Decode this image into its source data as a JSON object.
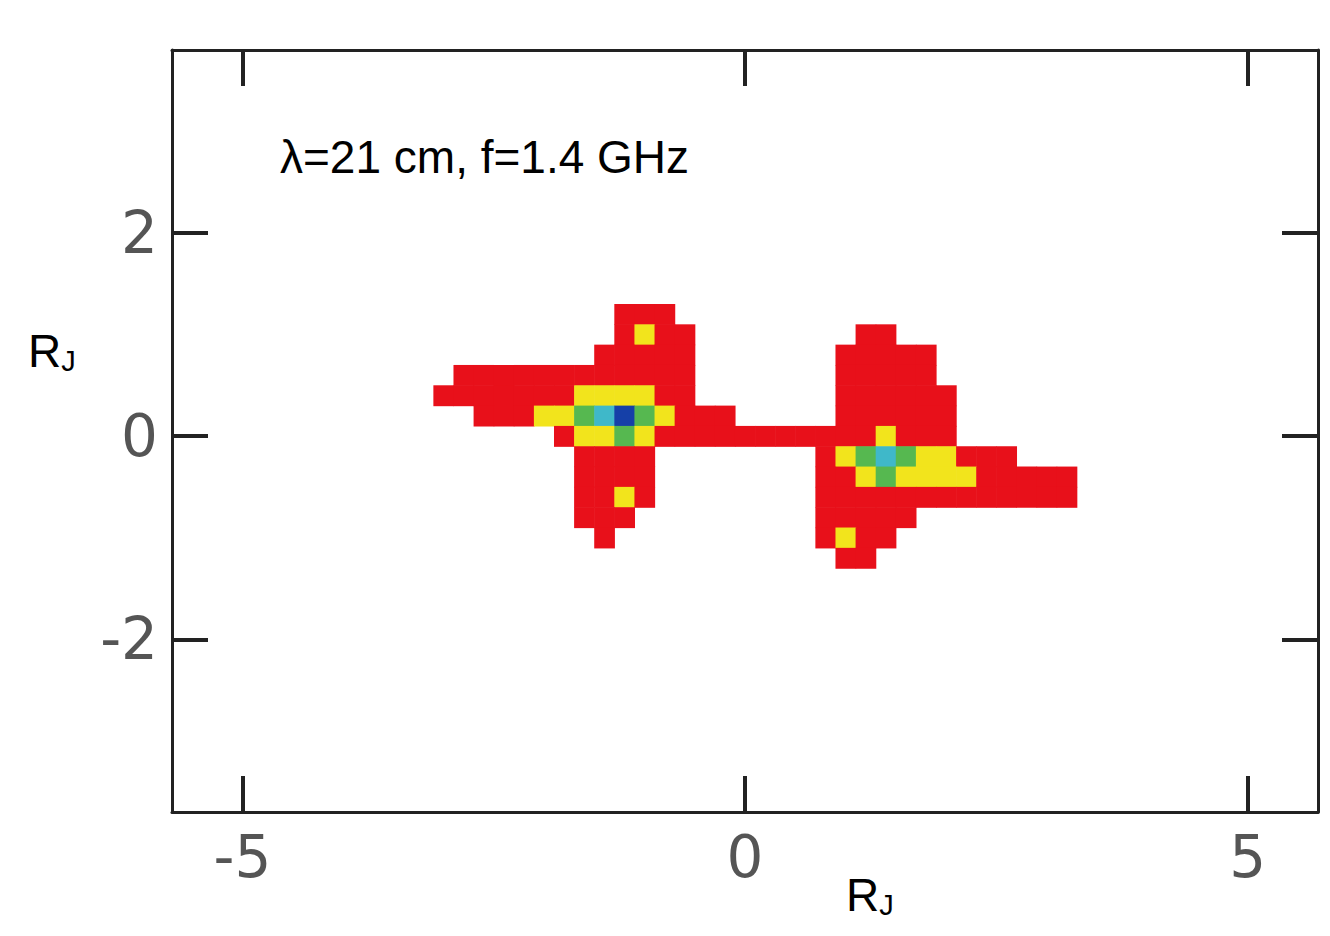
{
  "chart_data": {
    "type": "heatmap",
    "annotation": "λ=21 cm, f=1.4 GHz",
    "x_label": "RJ",
    "y_label": "RJ",
    "xlim": [
      -5.7,
      5.7
    ],
    "ylim": [
      -3.7,
      3.8
    ],
    "xticks": [
      -5,
      0,
      5
    ],
    "yticks": [
      -2,
      0,
      2
    ],
    "grid": false,
    "x": [
      -3.2,
      -3.0,
      -2.8,
      -2.6,
      -2.4,
      -2.2,
      -2.0,
      -1.8,
      -1.6,
      -1.4,
      -1.2,
      -1.0,
      -0.8,
      -0.6,
      -0.4,
      -0.2,
      0,
      0.2,
      0.4,
      0.6,
      0.8,
      1.0,
      1.2,
      1.4,
      1.6,
      1.8,
      2.0,
      2.2,
      2.4,
      2.6,
      2.8,
      3.0,
      3.2,
      3.4
    ],
    "y": [
      1.2,
      1.0,
      0.8,
      0.6,
      0.4,
      0.2,
      0,
      -0.2,
      -0.4,
      -0.6,
      -0.8,
      -1.0,
      -1.2
    ],
    "cells": [
      [
        0,
        0,
        0,
        0,
        0,
        0,
        0,
        0,
        0,
        0,
        1,
        1,
        1,
        0,
        0,
        0,
        0,
        0,
        0,
        0,
        0,
        0,
        0,
        0,
        0,
        0,
        0,
        0,
        0,
        0,
        0,
        0,
        0,
        0
      ],
      [
        0,
        0,
        0,
        0,
        0,
        0,
        0,
        0,
        0,
        0,
        1,
        2,
        1,
        1,
        0,
        0,
        0,
        0,
        0,
        0,
        0,
        0,
        1,
        1,
        0,
        0,
        0,
        0,
        0,
        0,
        0,
        0,
        0,
        0
      ],
      [
        0,
        0,
        0,
        0,
        0,
        0,
        0,
        0,
        0,
        1,
        1,
        1,
        1,
        1,
        0,
        0,
        0,
        0,
        0,
        0,
        0,
        1,
        1,
        1,
        1,
        1,
        0,
        0,
        0,
        0,
        0,
        0,
        0,
        0
      ],
      [
        0,
        0,
        1,
        1,
        1,
        1,
        1,
        1,
        1,
        1,
        1,
        1,
        1,
        1,
        0,
        0,
        0,
        0,
        0,
        0,
        0,
        1,
        1,
        1,
        1,
        1,
        0,
        0,
        0,
        0,
        0,
        0,
        0,
        0
      ],
      [
        0,
        1,
        1,
        1,
        1,
        1,
        1,
        1,
        2,
        2,
        2,
        2,
        1,
        1,
        0,
        0,
        0,
        0,
        0,
        0,
        0,
        1,
        1,
        1,
        1,
        1,
        1,
        0,
        0,
        0,
        0,
        0,
        0,
        0
      ],
      [
        0,
        0,
        0,
        1,
        1,
        1,
        2,
        2,
        3,
        4,
        5,
        3,
        2,
        1,
        1,
        1,
        0,
        0,
        0,
        0,
        0,
        1,
        1,
        1,
        1,
        1,
        1,
        0,
        0,
        0,
        0,
        0,
        0,
        0
      ],
      [
        0,
        0,
        0,
        0,
        0,
        0,
        0,
        1,
        2,
        2,
        3,
        2,
        1,
        1,
        1,
        1,
        1,
        1,
        1,
        1,
        1,
        1,
        1,
        2,
        1,
        1,
        1,
        0,
        0,
        0,
        0,
        0,
        0,
        0
      ],
      [
        0,
        0,
        0,
        0,
        0,
        0,
        0,
        0,
        1,
        1,
        1,
        1,
        0,
        0,
        0,
        0,
        0,
        0,
        0,
        0,
        1,
        2,
        3,
        4,
        3,
        2,
        2,
        1,
        1,
        1,
        0,
        0,
        0,
        0
      ],
      [
        0,
        0,
        0,
        0,
        0,
        0,
        0,
        0,
        1,
        1,
        1,
        1,
        0,
        0,
        0,
        0,
        0,
        0,
        0,
        0,
        1,
        1,
        2,
        3,
        2,
        2,
        2,
        2,
        1,
        1,
        1,
        1,
        1,
        0
      ],
      [
        0,
        0,
        0,
        0,
        0,
        0,
        0,
        0,
        1,
        1,
        2,
        1,
        0,
        0,
        0,
        0,
        0,
        0,
        0,
        0,
        1,
        1,
        1,
        1,
        1,
        1,
        1,
        1,
        1,
        1,
        1,
        1,
        1,
        0
      ],
      [
        0,
        0,
        0,
        0,
        0,
        0,
        0,
        0,
        1,
        1,
        1,
        0,
        0,
        0,
        0,
        0,
        0,
        0,
        0,
        0,
        1,
        1,
        1,
        1,
        1,
        0,
        0,
        0,
        0,
        0,
        0,
        0,
        0,
        0
      ],
      [
        0,
        0,
        0,
        0,
        0,
        0,
        0,
        0,
        0,
        1,
        0,
        0,
        0,
        0,
        0,
        0,
        0,
        0,
        0,
        0,
        1,
        2,
        1,
        1,
        0,
        0,
        0,
        0,
        0,
        0,
        0,
        0,
        0,
        0
      ],
      [
        0,
        0,
        0,
        0,
        0,
        0,
        0,
        0,
        0,
        0,
        0,
        0,
        0,
        0,
        0,
        0,
        0,
        0,
        0,
        0,
        0,
        1,
        1,
        0,
        0,
        0,
        0,
        0,
        0,
        0,
        0,
        0,
        0,
        0
      ]
    ],
    "color_levels": [
      1,
      2,
      3,
      4,
      5
    ],
    "colors": [
      "#e8101a",
      "#f2e41c",
      "#56b850",
      "#3fb8c9",
      "#1540a8"
    ]
  }
}
